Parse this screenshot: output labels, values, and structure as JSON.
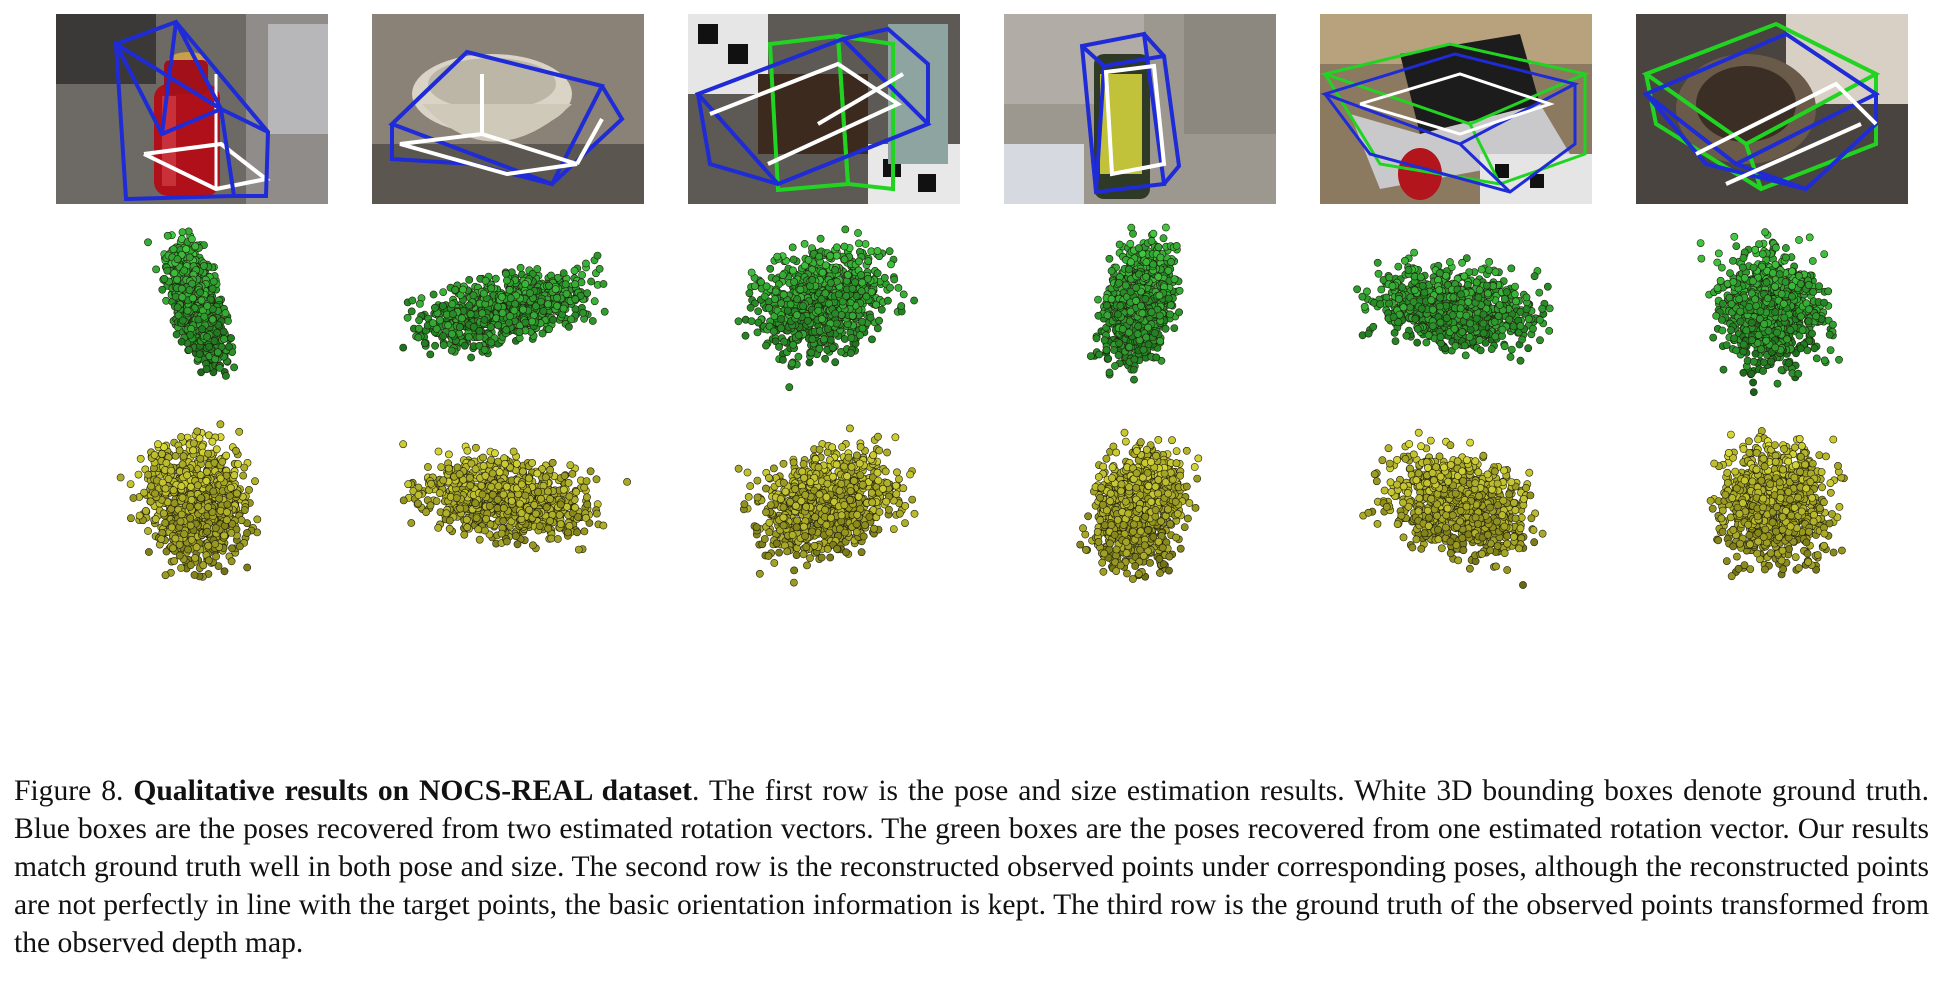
{
  "figure": {
    "columns": [
      {
        "id": "can",
        "boxes": [
          "white",
          "blue"
        ]
      },
      {
        "id": "bowl",
        "boxes": [
          "white",
          "blue"
        ]
      },
      {
        "id": "camera",
        "boxes": [
          "white",
          "blue",
          "green"
        ]
      },
      {
        "id": "can-2",
        "boxes": [
          "white",
          "blue"
        ]
      },
      {
        "id": "laptop",
        "boxes": [
          "white",
          "blue",
          "green"
        ]
      },
      {
        "id": "mug",
        "boxes": [
          "white",
          "blue",
          "green"
        ]
      }
    ],
    "colors": {
      "ground_truth_box": "#ffffff",
      "two_vector_box": "#1f2bd6",
      "one_vector_box": "#22d422",
      "reconstructed_points": "#2fbf2f",
      "observed_points": "#c9c92a"
    }
  },
  "caption": {
    "label": "Figure 8. ",
    "title": "Qualitative results on NOCS-REAL dataset",
    "body": ". The first row is the pose and size estimation results. White 3D bounding boxes denote ground truth. Blue boxes are the poses recovered from two estimated rotation vectors. The green boxes are the poses recovered from one estimated rotation vector. Our results match ground truth well in both pose and size. The second row is the reconstructed observed points under corresponding poses, although the reconstructed points are not perfectly in line with the target points, the basic orientation information is kept. The third row is the ground truth of the observed points transformed from the observed depth map."
  }
}
